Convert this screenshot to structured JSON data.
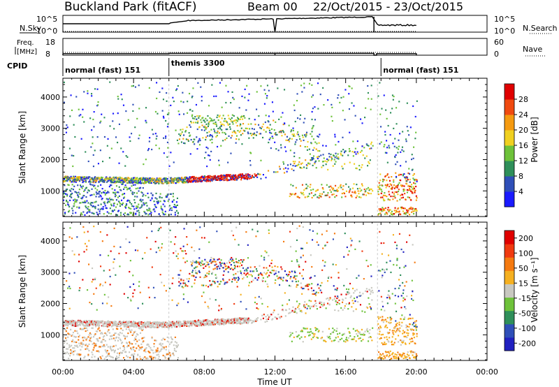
{
  "header": {
    "station": "Buckland Park (fitACF)",
    "beam": "Beam 00",
    "date_range": "22/Oct/2015 - 23/Oct/2015"
  },
  "chart_data": [
    {
      "type": "line",
      "left_label": "N.Sky",
      "right_label": "N.Search",
      "left_ticks": [
        "10^5",
        "10^0"
      ],
      "right_ticks": [
        "10^5",
        "10^0"
      ]
    },
    {
      "type": "line",
      "left_label_top": "Freq.",
      "left_label_bottom": "[MHz]",
      "right_label": "Nave",
      "left_ticks": [
        "18",
        "8"
      ],
      "right_ticks": [
        "60",
        "0"
      ],
      "ylim_left": [
        8,
        18
      ],
      "ylim_right": [
        0,
        60
      ]
    },
    {
      "type": "table",
      "label": "CPID",
      "segments": [
        {
          "name": "normal (fast) 151",
          "start_h": 0,
          "end_h": 6
        },
        {
          "name": "themis 3300",
          "start_h": 6,
          "end_h": 18
        },
        {
          "name": "normal (fast) 151",
          "start_h": 18,
          "end_h": 20
        }
      ]
    },
    {
      "type": "heatmap",
      "ylabel": "Slant Range [km]",
      "yticks": [
        1000,
        2000,
        3000,
        4000
      ],
      "ylim": [
        180,
        4600
      ],
      "xlim": [
        0,
        24
      ],
      "colorbar_label": "Power [dB]",
      "colorbar_ticks": [
        "4",
        "8",
        "12",
        "16",
        "20",
        "24",
        "28"
      ],
      "colorbar_colors": [
        "#1a1aff",
        "#2f4fb8",
        "#2f8f5a",
        "#6ec23a",
        "#f0d020",
        "#f59a10",
        "#f04a10",
        "#e00000"
      ]
    },
    {
      "type": "heatmap",
      "ylabel": "Slant Range [km]",
      "yticks": [
        1000,
        2000,
        3000,
        4000
      ],
      "ylim": [
        180,
        4600
      ],
      "xlim": [
        0,
        24
      ],
      "xlabel": "Time UT",
      "xticks": [
        "00:00",
        "04:00",
        "08:00",
        "12:00",
        "16:00",
        "20:00",
        "00:00"
      ],
      "colorbar_label": "Velocity [m s⁻¹]",
      "colorbar_ticks": [
        "200",
        "100",
        "50",
        "15",
        "-15",
        "-50",
        "-100",
        "-200"
      ],
      "colorbar_colors": [
        "#2020c0",
        "#2f4fb8",
        "#2f8f5a",
        "#6ec23a",
        "#c8c8c0",
        "#f5b020",
        "#f57a10",
        "#f03a10",
        "#e00000"
      ]
    }
  ]
}
